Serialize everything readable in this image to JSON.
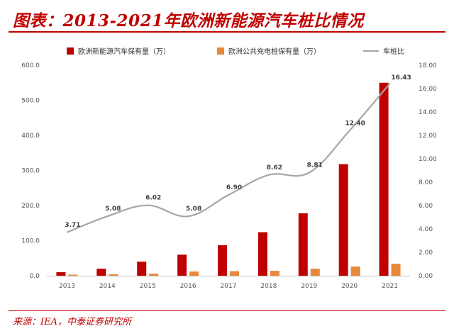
{
  "title": "图表：2013-2021年欧洲新能源汽车桩比情况",
  "source": "来源：IEA，中泰证券研究所",
  "chart_data": {
    "type": "bar",
    "categories": [
      "2013",
      "2014",
      "2015",
      "2016",
      "2017",
      "2018",
      "2019",
      "2020",
      "2021"
    ],
    "series": [
      {
        "name": "欧洲新能源汽车保有量（万）",
        "kind": "bar",
        "axis": "left",
        "color": "#c00000",
        "values": [
          10,
          20,
          40,
          60,
          87,
          124,
          178,
          318,
          550
        ]
      },
      {
        "name": "欧洲公共充电桩保有量（万）",
        "kind": "bar",
        "axis": "left",
        "color": "#e8883a",
        "values": [
          3,
          4,
          6,
          12,
          13,
          14,
          20,
          26,
          34
        ]
      },
      {
        "name": "车桩比",
        "kind": "line",
        "axis": "right",
        "color": "#a6a6a6",
        "values": [
          3.71,
          5.08,
          6.02,
          5.08,
          6.9,
          8.62,
          8.81,
          12.4,
          16.43
        ],
        "labels": [
          "3.71",
          "5.08",
          "6.02",
          "5.08",
          "6.90",
          "8.62",
          "8.81",
          "12.40",
          "16.43"
        ]
      }
    ],
    "yleft": {
      "min": 0,
      "max": 600,
      "step": 100,
      "ticks": [
        "0.0",
        "100.0",
        "200.0",
        "300.0",
        "400.0",
        "500.0",
        "600.0"
      ]
    },
    "yright": {
      "min": 0,
      "max": 18,
      "step": 2,
      "ticks": [
        "0.00",
        "2.00",
        "4.00",
        "6.00",
        "8.00",
        "10.00",
        "12.00",
        "14.00",
        "16.00",
        "18.00"
      ]
    },
    "legend_position": "top",
    "grid": false
  }
}
